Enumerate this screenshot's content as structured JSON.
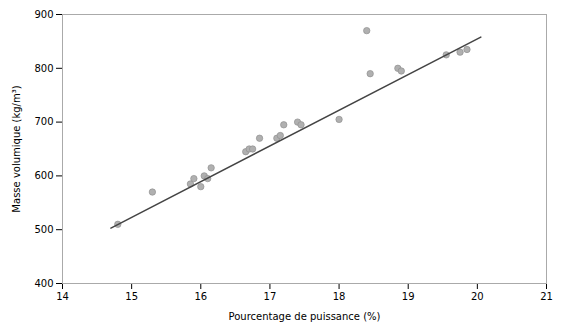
{
  "chart_data": {
    "type": "scatter",
    "xlabel": "Pourcentage de puissance (%)",
    "ylabel": "Masse volumique (kg/m³)",
    "xlim": [
      14,
      21
    ],
    "ylim": [
      400,
      900
    ],
    "xticks": [
      14,
      15,
      16,
      17,
      18,
      19,
      20,
      21
    ],
    "yticks": [
      400,
      500,
      600,
      700,
      800,
      900
    ],
    "grid": false,
    "series": [
      {
        "type": "scatter",
        "marker": "circle",
        "color": "#b0b0b0",
        "x": [
          14.8,
          15.3,
          15.85,
          15.9,
          16.0,
          16.05,
          16.1,
          16.15,
          16.65,
          16.7,
          16.75,
          16.85,
          17.1,
          17.15,
          17.2,
          17.4,
          17.45,
          18.0,
          18.4,
          18.45,
          18.85,
          18.9,
          19.55,
          19.75,
          19.85
        ],
        "values": [
          510,
          570,
          585,
          595,
          580,
          600,
          595,
          615,
          645,
          650,
          650,
          670,
          670,
          675,
          695,
          700,
          695,
          705,
          870,
          790,
          800,
          795,
          825,
          830,
          835
        ]
      },
      {
        "type": "line",
        "color": "#444444",
        "x": [
          14.7,
          20.05
        ],
        "values": [
          503,
          858
        ]
      }
    ]
  }
}
